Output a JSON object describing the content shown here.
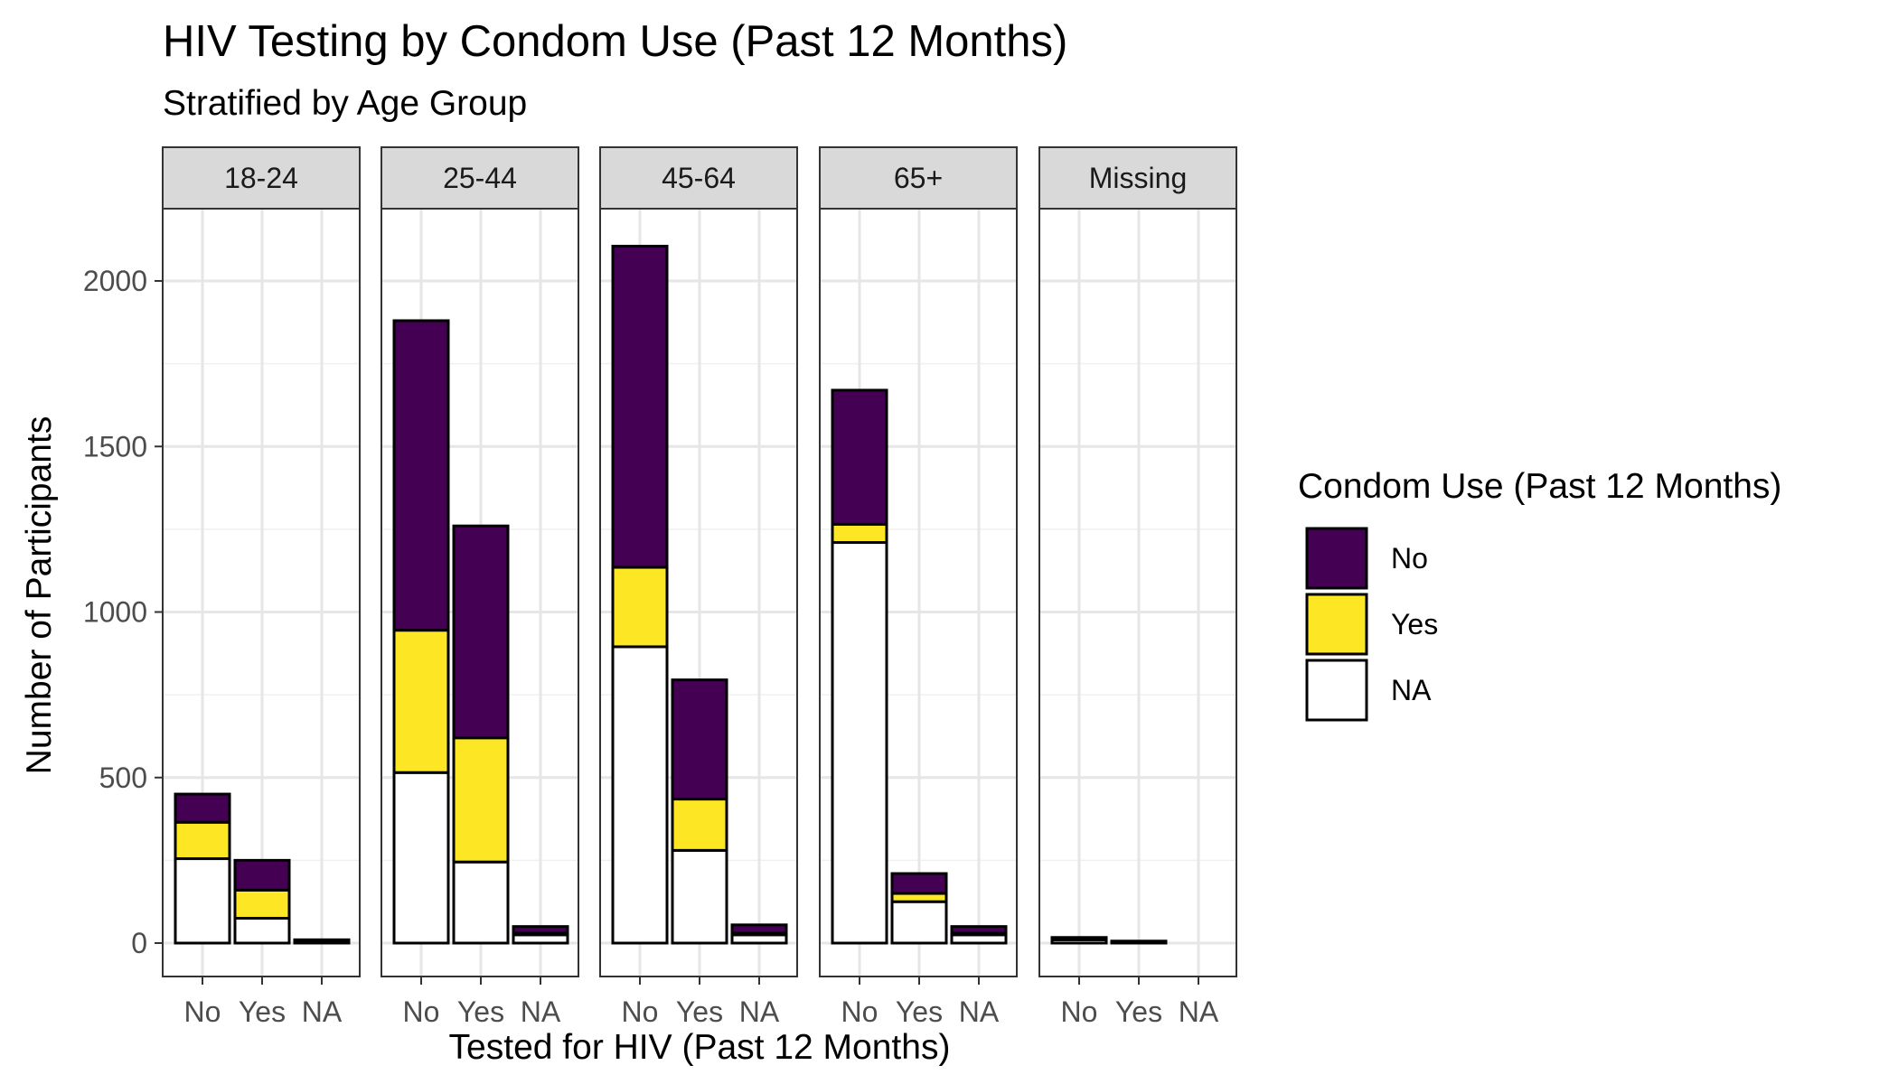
{
  "chart_data": {
    "type": "bar",
    "title": "HIV Testing by Condom Use (Past 12 Months)",
    "subtitle": "Stratified by Age Group",
    "xlabel": "Tested for HIV (Past 12 Months)",
    "ylabel": "Number of Participants",
    "ylim": [
      0,
      2200
    ],
    "yticks": [
      0,
      500,
      1000,
      1500,
      2000
    ],
    "grid": true,
    "stacked": true,
    "facets": [
      "18-24",
      "25-44",
      "45-64",
      "65+",
      "Missing"
    ],
    "categories": [
      "No",
      "Yes",
      "NA"
    ],
    "legend": {
      "title": "Condom Use (Past 12 Months)",
      "placement": "right",
      "entries": [
        {
          "label": "No",
          "color": "#440154"
        },
        {
          "label": "Yes",
          "color": "#FDE725"
        },
        {
          "label": "NA",
          "color": "#FFFFFF"
        }
      ]
    },
    "series": [
      {
        "name": "NA",
        "color": "#FFFFFF",
        "values": [
          [
            255,
            75,
            5
          ],
          [
            515,
            245,
            25
          ],
          [
            895,
            280,
            25
          ],
          [
            1210,
            125,
            25
          ],
          [
            10,
            3,
            0
          ]
        ]
      },
      {
        "name": "Yes",
        "color": "#FDE725",
        "values": [
          [
            110,
            85,
            2
          ],
          [
            430,
            375,
            5
          ],
          [
            240,
            155,
            5
          ],
          [
            55,
            25,
            5
          ],
          [
            2,
            1,
            0
          ]
        ]
      },
      {
        "name": "No",
        "color": "#440154",
        "values": [
          [
            85,
            90,
            3
          ],
          [
            935,
            640,
            20
          ],
          [
            970,
            360,
            25
          ],
          [
            405,
            60,
            20
          ],
          [
            5,
            2,
            0
          ]
        ]
      }
    ]
  }
}
